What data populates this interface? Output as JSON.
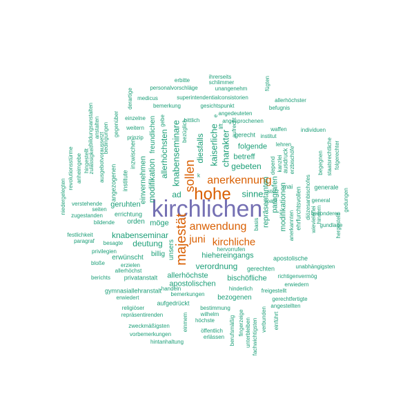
{
  "colors": {
    "highest": "#7570b3",
    "high": "#d95f02",
    "regular": "#1b9e77"
  },
  "words": [
    {
      "text": "kirchlichen",
      "tier": "highest"
    },
    {
      "text": "hohe",
      "tier": "high"
    },
    {
      "text": "majestät",
      "tier": "high"
    },
    {
      "text": "sollen",
      "tier": "high"
    },
    {
      "text": "anerkennung",
      "tier": "high"
    },
    {
      "text": "anwendung",
      "tier": "high"
    },
    {
      "text": "kirchliche",
      "tier": "high"
    },
    {
      "text": "juni",
      "tier": "high"
    },
    {
      "text": "knabenseminare",
      "tier": "regular"
    },
    {
      "text": "allerhöchsten",
      "tier": "regular"
    },
    {
      "text": "modifikation",
      "tier": "regular"
    },
    {
      "text": "einvernehmen",
      "tier": "regular"
    },
    {
      "text": "kaiserliche",
      "tier": "regular"
    },
    {
      "text": "charakter",
      "tier": "regular"
    },
    {
      "text": "diesfalls",
      "tier": "regular"
    },
    {
      "text": "gebeten",
      "tier": "regular"
    },
    {
      "text": "sinne",
      "tier": "regular"
    },
    {
      "text": "ad",
      "tier": "regular"
    },
    {
      "text": "folgende",
      "tier": "regular"
    },
    {
      "text": "betreff",
      "tier": "regular"
    },
    {
      "text": "repräsentanten",
      "tier": "regular"
    },
    {
      "text": "paragrafen",
      "tier": "regular"
    },
    {
      "text": "modifikationen",
      "tier": "regular"
    },
    {
      "text": "knabenseminar",
      "tier": "regular"
    },
    {
      "text": "deutung",
      "tier": "regular"
    },
    {
      "text": "möge",
      "tier": "regular"
    },
    {
      "text": "hiehereingangs",
      "tier": "regular"
    },
    {
      "text": "verordnung",
      "tier": "regular"
    },
    {
      "text": "apostolischen",
      "tier": "regular"
    },
    {
      "text": "allerhöchste",
      "tier": "regular"
    },
    {
      "text": "bischöfliche",
      "tier": "regular"
    },
    {
      "text": "billig",
      "tier": "regular"
    },
    {
      "text": "unsers",
      "tier": "regular"
    },
    {
      "text": "geruhten",
      "tier": "regular"
    },
    {
      "text": "orden",
      "tier": "regular"
    },
    {
      "text": "erwünscht",
      "tier": "regular"
    },
    {
      "text": "privatanstalt",
      "tier": "regular"
    },
    {
      "text": "gymnasiallehranstalt",
      "tier": "regular"
    },
    {
      "text": "aufgedrückt",
      "tier": "regular"
    },
    {
      "text": "bezogenen",
      "tier": "regular"
    },
    {
      "text": "freundlichen",
      "tier": "regular"
    },
    {
      "text": "personalvorschläge",
      "tier": "regular"
    },
    {
      "text": "superintendentialconsistorien",
      "tier": "regular"
    },
    {
      "text": "gesichtspunkt",
      "tier": "regular"
    },
    {
      "text": "angedeuteten",
      "tier": "regular"
    },
    {
      "text": "angesprochenen",
      "tier": "regular"
    },
    {
      "text": "unangenehm",
      "tier": "regular"
    },
    {
      "text": "schlimmer",
      "tier": "regular"
    },
    {
      "text": "ihrerseits",
      "tier": "regular"
    },
    {
      "text": "erbitte",
      "tier": "regular"
    },
    {
      "text": "fügten",
      "tier": "regular"
    },
    {
      "text": "allerhöchster",
      "tier": "regular"
    },
    {
      "text": "befugnis",
      "tier": "regular"
    },
    {
      "text": "medicus",
      "tier": "regular"
    },
    {
      "text": "bemerkung",
      "tier": "regular"
    },
    {
      "text": "derartige",
      "tier": "regular"
    },
    {
      "text": "bittlich",
      "tier": "regular"
    },
    {
      "text": "bezüglich",
      "tier": "regular"
    },
    {
      "text": "gebe",
      "tier": "regular"
    },
    {
      "text": "einzelne",
      "tier": "regular"
    },
    {
      "text": "weitern",
      "tier": "regular"
    },
    {
      "text": "prinzip",
      "tier": "regular"
    },
    {
      "text": "gegenüber",
      "tier": "regular"
    },
    {
      "text": "bedingungen",
      "tier": "regular"
    },
    {
      "text": "anstalten",
      "tier": "regular"
    },
    {
      "text": "bildungsanstalten",
      "tier": "regular"
    },
    {
      "text": "aufrecht",
      "tier": "regular"
    },
    {
      "text": "gerecht",
      "tier": "regular"
    },
    {
      "text": "waffen",
      "tier": "regular"
    },
    {
      "text": "institut",
      "tier": "regular"
    },
    {
      "text": "individuen",
      "tier": "regular"
    },
    {
      "text": "lehren",
      "tier": "regular"
    },
    {
      "text": "ausdruck",
      "tier": "regular"
    },
    {
      "text": "depend",
      "tier": "regular"
    },
    {
      "text": "mai",
      "tier": "regular"
    },
    {
      "text": "stolz",
      "tier": "regular"
    },
    {
      "text": "toast",
      "tier": "regular"
    },
    {
      "text": "anerkannten",
      "tier": "regular"
    },
    {
      "text": "ehrfurchtsvollen",
      "tier": "regular"
    },
    {
      "text": "diözesanbischofes",
      "tier": "regular"
    },
    {
      "text": "generale",
      "tier": "regular"
    },
    {
      "text": "general",
      "tier": "regular"
    },
    {
      "text": "besonderen",
      "tier": "regular"
    },
    {
      "text": "gundlage",
      "tier": "regular"
    },
    {
      "text": "hergestellt",
      "tier": "regular"
    },
    {
      "text": "gedungen",
      "tier": "regular"
    },
    {
      "text": "staatsrechtliche",
      "tier": "regular"
    },
    {
      "text": "folgerechter",
      "tier": "regular"
    },
    {
      "text": "begegnen",
      "tier": "regular"
    },
    {
      "text": "wievielerlei",
      "tier": "regular"
    },
    {
      "text": "hindern",
      "tier": "regular"
    },
    {
      "text": "revolutionsstürme",
      "tier": "regular"
    },
    {
      "text": "anheimgebe",
      "tier": "regular"
    },
    {
      "text": "niedergelegten",
      "tier": "regular"
    },
    {
      "text": "hingestellt",
      "tier": "regular"
    },
    {
      "text": "zulässigkeit",
      "tier": "regular"
    },
    {
      "text": "ausgebotvoraussetzt",
      "tier": "regular"
    },
    {
      "text": "angezogenen",
      "tier": "regular"
    },
    {
      "text": "institute",
      "tier": "regular"
    },
    {
      "text": "inzwischen",
      "tier": "regular"
    },
    {
      "text": "verstehende",
      "tier": "regular"
    },
    {
      "text": "seiten",
      "tier": "regular"
    },
    {
      "text": "zugestanden",
      "tier": "regular"
    },
    {
      "text": "errichtung",
      "tier": "regular"
    },
    {
      "text": "bildende",
      "tier": "regular"
    },
    {
      "text": "festlichkeit",
      "tier": "regular"
    },
    {
      "text": "paragraf",
      "tier": "regular"
    },
    {
      "text": "besagte",
      "tier": "regular"
    },
    {
      "text": "privilegien",
      "tier": "regular"
    },
    {
      "text": "bloße",
      "tier": "regular"
    },
    {
      "text": "erzielen",
      "tier": "regular"
    },
    {
      "text": "allerhöchst",
      "tier": "regular"
    },
    {
      "text": "berichts",
      "tier": "regular"
    },
    {
      "text": "erwiedert",
      "tier": "regular"
    },
    {
      "text": "religiöser",
      "tier": "regular"
    },
    {
      "text": "repräsentirenden",
      "tier": "regular"
    },
    {
      "text": "zweckmäßigsten",
      "tier": "regular"
    },
    {
      "text": "vorbemerkungen",
      "tier": "regular"
    },
    {
      "text": "hintanhaltung",
      "tier": "regular"
    },
    {
      "text": "einmem",
      "tier": "regular"
    },
    {
      "text": "handeln",
      "tier": "regular"
    },
    {
      "text": "bemerkungen",
      "tier": "regular"
    },
    {
      "text": "bestimmung",
      "tier": "regular"
    },
    {
      "text": "wilhelm",
      "tier": "regular"
    },
    {
      "text": "höchste",
      "tier": "regular"
    },
    {
      "text": "öffentlich",
      "tier": "regular"
    },
    {
      "text": "erlässen",
      "tier": "regular"
    },
    {
      "text": "berufsmäßig",
      "tier": "regular"
    },
    {
      "text": "ﬁngerzeige",
      "tier": "regular"
    },
    {
      "text": "unterbleiben",
      "tier": "regular"
    },
    {
      "text": "fachwichtigsten",
      "tier": "regular"
    },
    {
      "text": "verbunden",
      "tier": "regular"
    },
    {
      "text": "einführt",
      "tier": "regular"
    },
    {
      "text": "gerechten",
      "tier": "regular"
    },
    {
      "text": "hinderlich",
      "tier": "regular"
    },
    {
      "text": "freigestellt",
      "tier": "regular"
    },
    {
      "text": "gerechtfertigte",
      "tier": "regular"
    },
    {
      "text": "angestellten",
      "tier": "regular"
    },
    {
      "text": "erwiedern",
      "tier": "regular"
    },
    {
      "text": "richtigenvermög",
      "tier": "regular"
    },
    {
      "text": "unabhängigsten",
      "tier": "regular"
    },
    {
      "text": "apostolische",
      "tier": "regular"
    },
    {
      "text": "hervorrufen",
      "tier": "regular"
    },
    {
      "text": "basis",
      "tier": "regular"
    },
    {
      "text": "e",
      "tier": "regular"
    },
    {
      "text": "k",
      "tier": "regular"
    },
    {
      "text": "lift",
      "tier": "regular"
    },
    {
      "text": "erzbischöfe",
      "tier": "regular"
    },
    {
      "text": "kanzlei",
      "tier": "regular"
    }
  ]
}
